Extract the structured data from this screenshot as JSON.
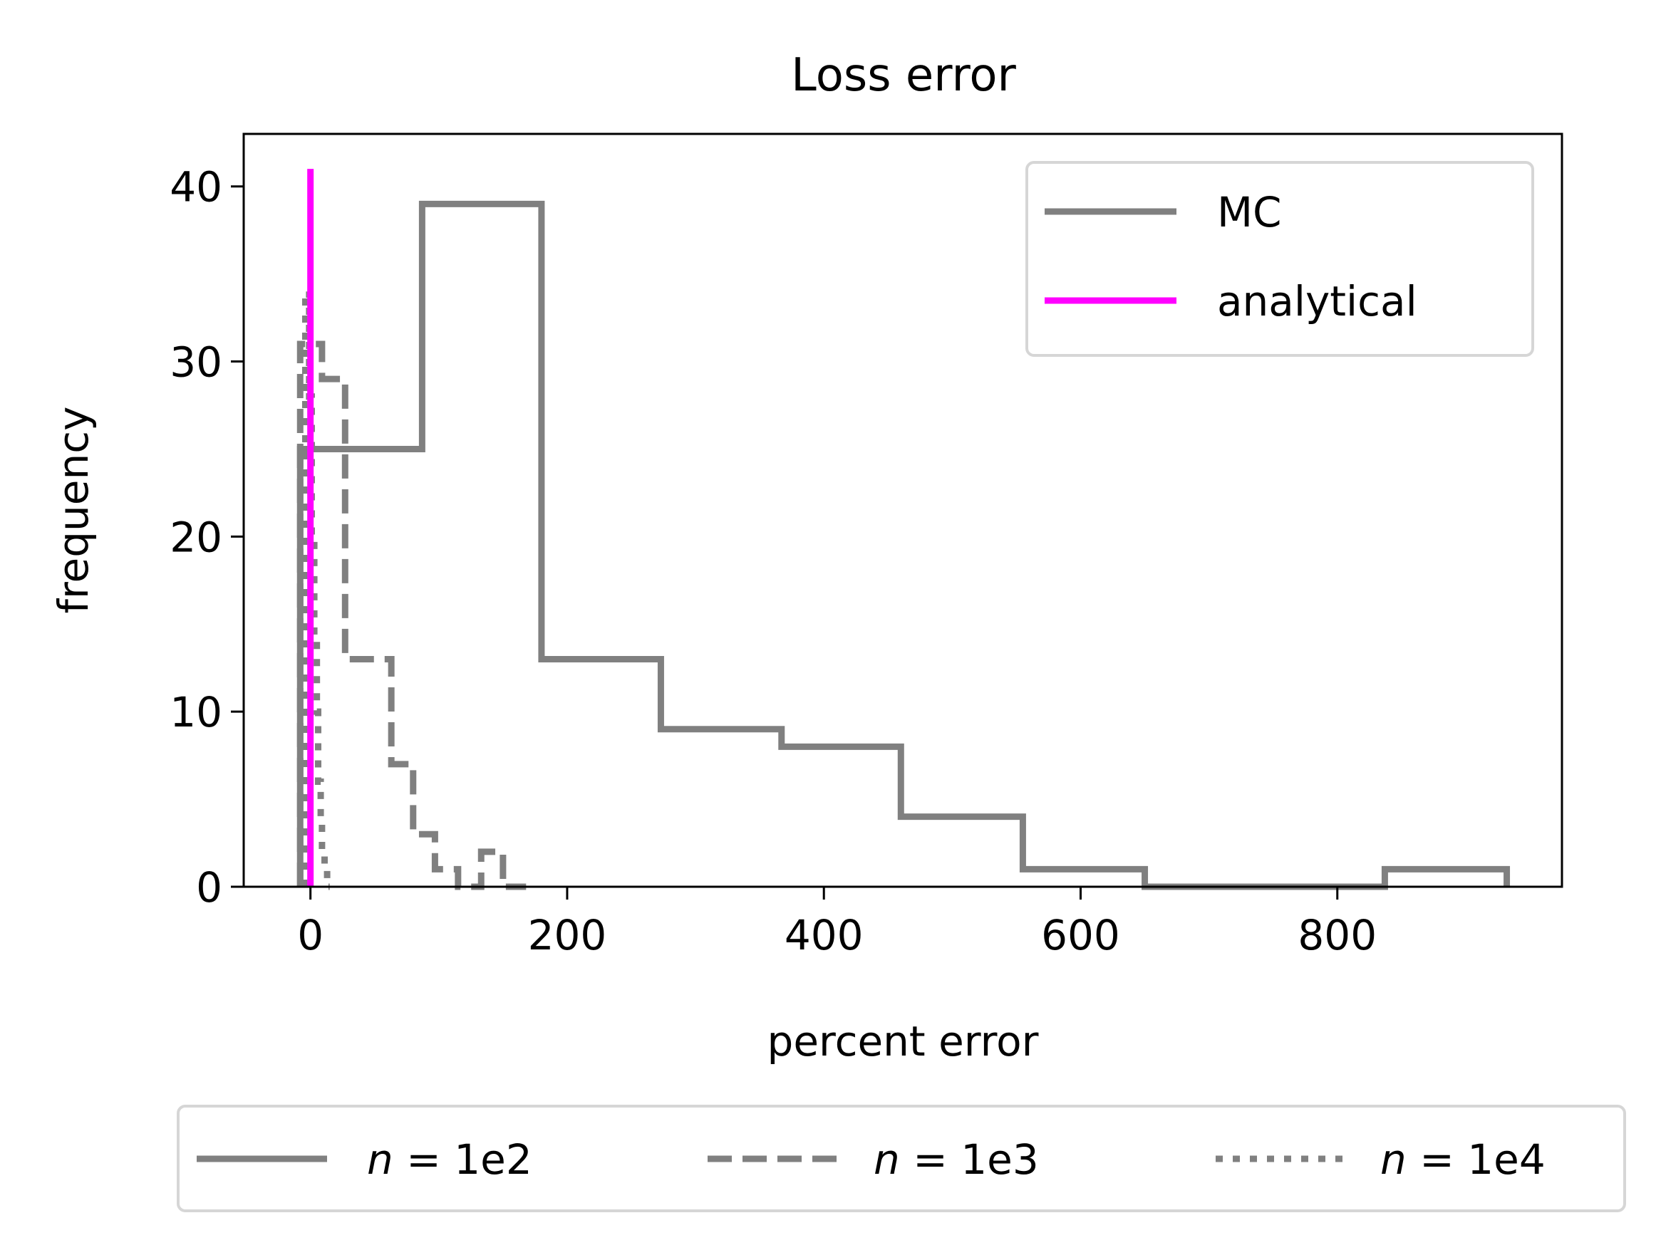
{
  "chart_data": {
    "type": "histogram",
    "title": "Loss error",
    "xlabel": "percent error",
    "ylabel": "frequency",
    "xlim": [
      -52,
      975
    ],
    "ylim": [
      0,
      43
    ],
    "xticks": [
      0,
      200,
      400,
      600,
      800
    ],
    "yticks": [
      0,
      10,
      20,
      30,
      40
    ],
    "grid": false,
    "colors": {
      "mc": "#808080",
      "analytical": "#ff00ff"
    },
    "legend_method": {
      "placement": "top-right",
      "entries": [
        {
          "label": "MC",
          "color": "#808080",
          "style": "solid"
        },
        {
          "label": "analytical",
          "color": "#ff00ff",
          "style": "solid"
        }
      ]
    },
    "legend_n": {
      "placement": "below",
      "entries": [
        {
          "label_italic": "n",
          "label_rest": " = 1e2",
          "style": "solid"
        },
        {
          "label_italic": "n",
          "label_rest": " = 1e3",
          "style": "dashed"
        },
        {
          "label_italic": "n",
          "label_rest": " = 1e4",
          "style": "dotted"
        }
      ]
    },
    "series": [
      {
        "name": "n = 1e2",
        "method": "MC",
        "style": "solid",
        "bin_edges": [
          -8,
          87,
          180,
          273,
          367,
          460,
          555,
          650,
          743,
          837,
          932
        ],
        "counts": [
          25,
          39,
          13,
          9,
          8,
          4,
          1,
          0,
          0,
          1
        ]
      },
      {
        "name": "n = 1e3",
        "method": "MC",
        "style": "dashed",
        "bin_edges": [
          -8,
          9,
          27,
          45,
          63,
          80,
          97,
          115,
          133,
          150,
          168
        ],
        "counts": [
          31,
          29,
          13,
          13,
          7,
          3,
          1,
          0,
          2,
          0
        ]
      },
      {
        "name": "n = 1e4",
        "method": "MC",
        "style": "dotted",
        "bin_edges": [
          -4,
          -1,
          1,
          3,
          5,
          6,
          8,
          9,
          11,
          13,
          15
        ],
        "counts": [
          34,
          28,
          20,
          14,
          10,
          6,
          4,
          2,
          1,
          0
        ]
      },
      {
        "name": "analytical",
        "method": "analytical",
        "style": "solid",
        "x": [
          0,
          0
        ],
        "y": [
          0,
          41
        ]
      }
    ]
  }
}
